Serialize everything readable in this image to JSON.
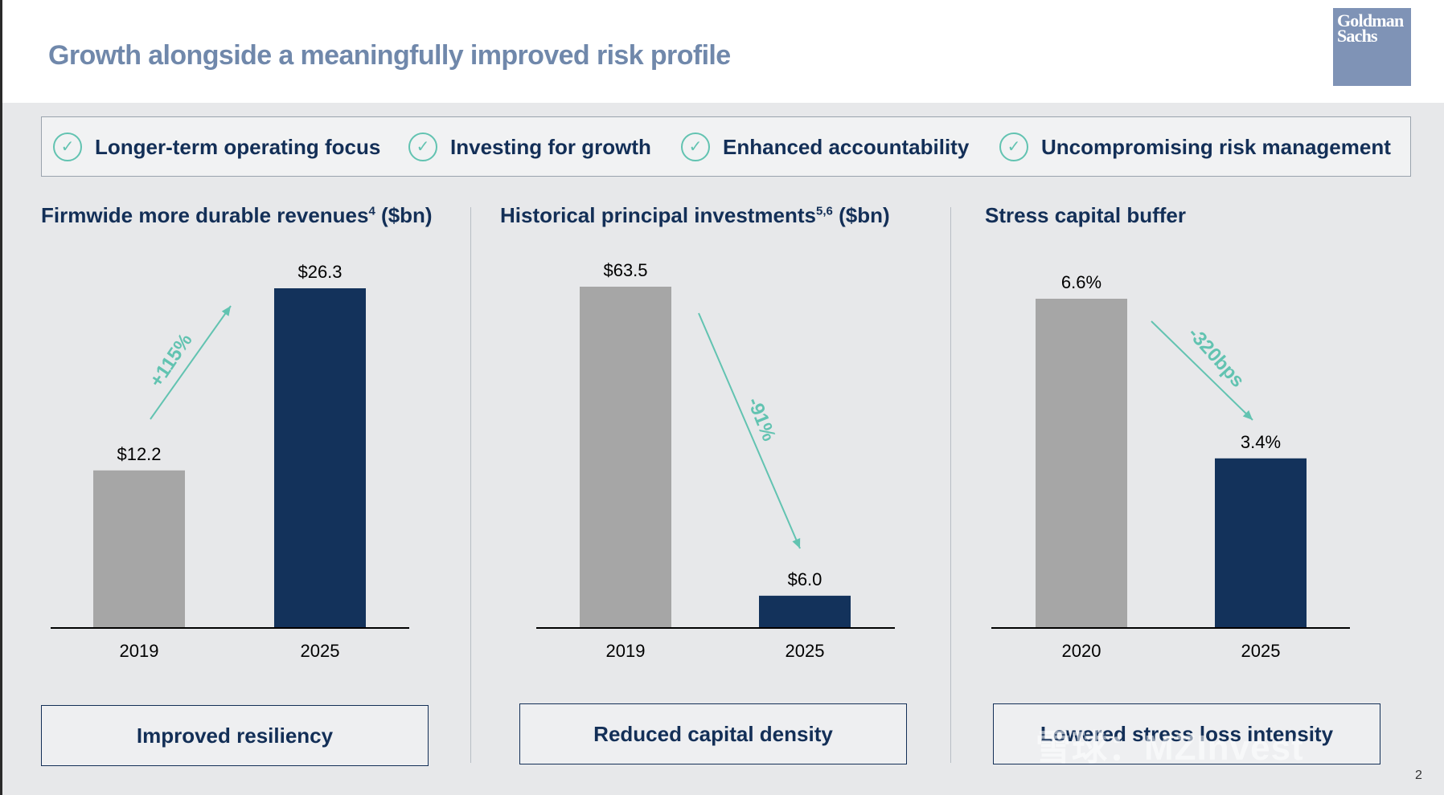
{
  "title": "Growth alongside a meaningfully improved risk profile",
  "logo": {
    "line1": "Goldman",
    "line2": "Sachs"
  },
  "pillars": [
    "Longer-term operating focus",
    "Investing for growth",
    "Enhanced accountability",
    "Uncompromising risk management"
  ],
  "check_glyph": "✓",
  "chart_data": [
    {
      "type": "bar",
      "title": "Firmwide more durable revenues",
      "title_sup": "4",
      "title_suffix": " ($bn)",
      "categories": [
        "2019",
        "2025"
      ],
      "values": [
        12.2,
        26.3
      ],
      "value_labels": [
        "$12.2",
        "$26.3"
      ],
      "change_label": "+115%",
      "caption": "Improved resiliency",
      "ylim": [
        0,
        26.3
      ],
      "colors": [
        "#a6a6a6",
        "#13325b"
      ]
    },
    {
      "type": "bar",
      "title": "Historical principal investments",
      "title_sup": "5,6",
      "title_suffix": " ($bn)",
      "categories": [
        "2019",
        "2025"
      ],
      "values": [
        63.5,
        6.0
      ],
      "value_labels": [
        "$63.5",
        "$6.0"
      ],
      "change_label": "-91%",
      "caption": "Reduced capital density",
      "ylim": [
        0,
        63.5
      ],
      "colors": [
        "#a6a6a6",
        "#13325b"
      ]
    },
    {
      "type": "bar",
      "title": "Stress capital buffer",
      "title_sup": "",
      "title_suffix": "",
      "categories": [
        "2020",
        "2025"
      ],
      "values": [
        6.6,
        3.4
      ],
      "value_labels": [
        "6.6%",
        "3.4%"
      ],
      "change_label": "-320bps",
      "caption": "Lowered stress loss intensity",
      "ylim": [
        0,
        6.6
      ],
      "colors": [
        "#a6a6a6",
        "#13325b"
      ]
    }
  ],
  "watermark": "雪球：MZInvest",
  "page_number": "2"
}
